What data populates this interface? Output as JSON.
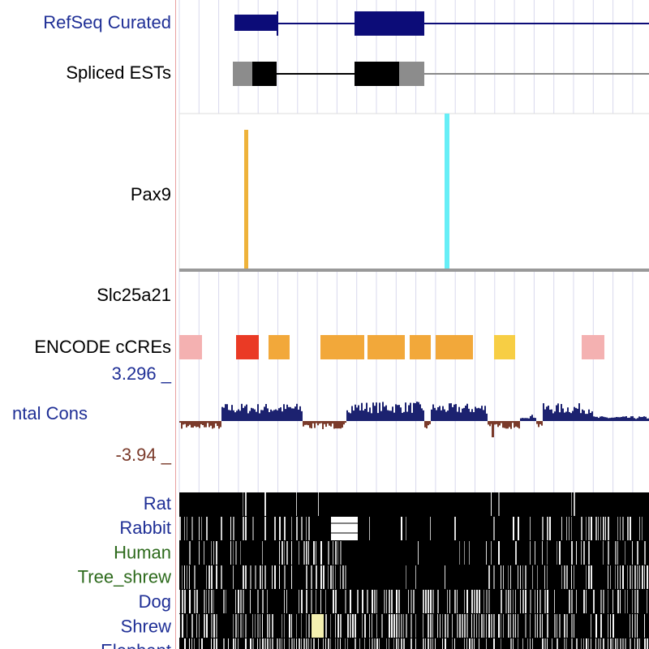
{
  "tracks": {
    "refseq": "RefSeq Curated",
    "ests": "Spliced ESTs",
    "pax9": "Pax9",
    "slc": "Slc25a21",
    "encode": "ENCODE cCREs",
    "cons_max": "3.296 _",
    "cons": "ntal Cons",
    "cons_min": "-3.94 _",
    "species": [
      "Rat",
      "Rabbit",
      "Human",
      "Tree_shrew",
      "Dog",
      "Shrew",
      "Elephant"
    ]
  }
}
